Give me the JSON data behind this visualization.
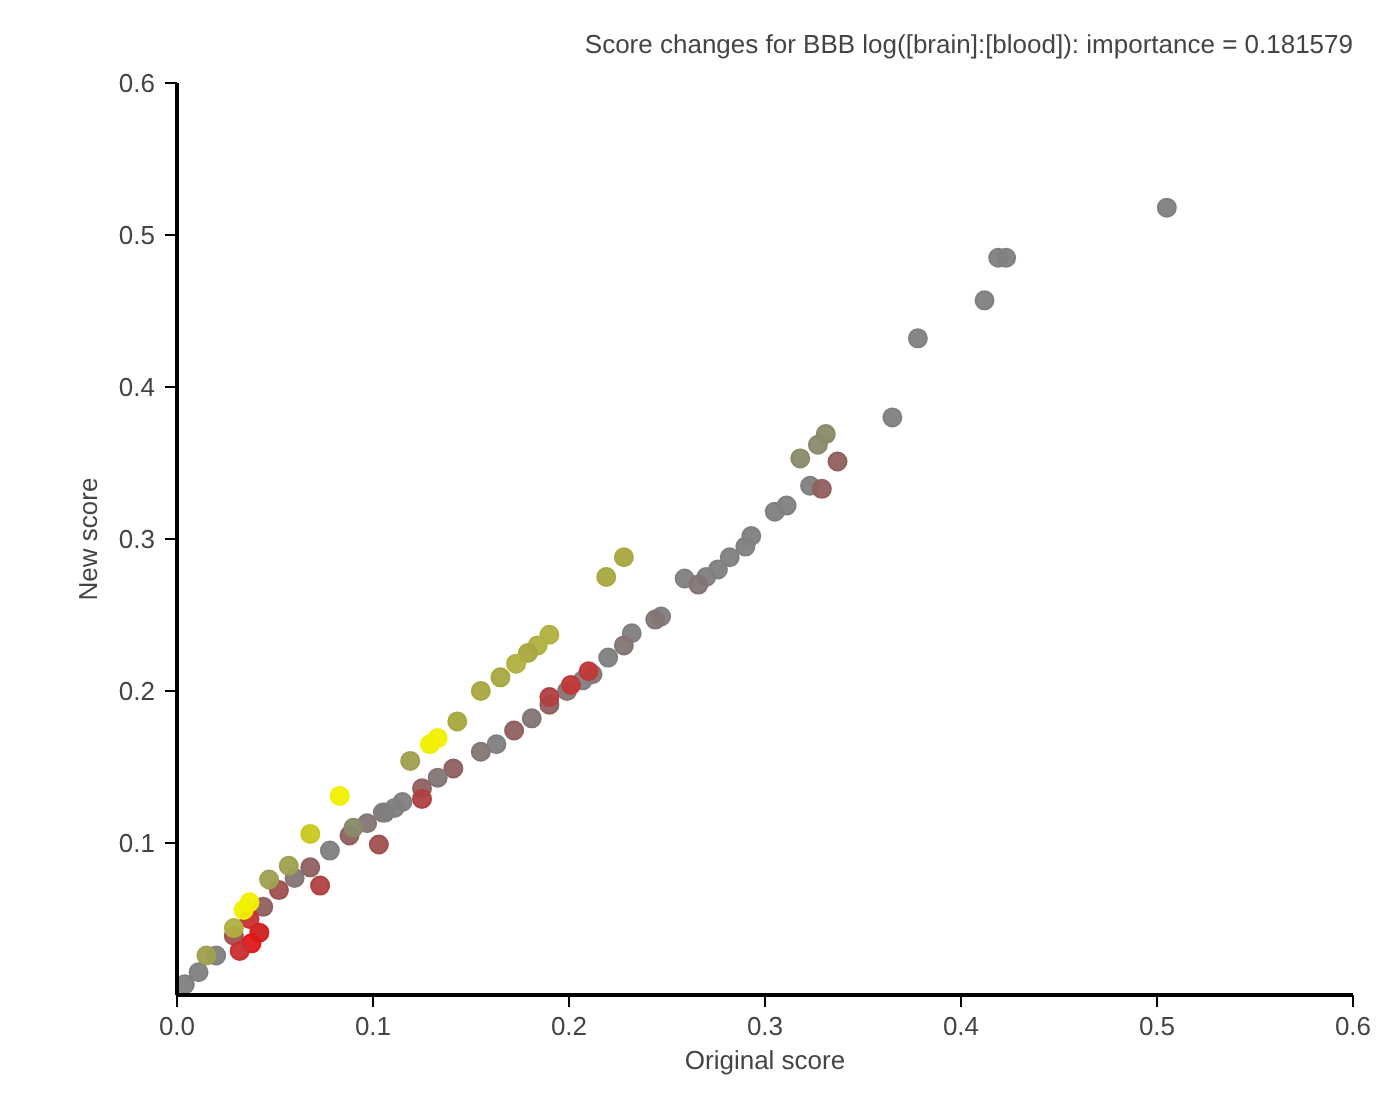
{
  "chart_data": {
    "type": "scatter",
    "title": "Score changes for BBB log([brain]:[blood]): importance = 0.181579",
    "xlabel": "Original score",
    "ylabel": "New score",
    "xlim": [
      0,
      0.6
    ],
    "ylim": [
      0,
      0.6
    ],
    "xticks": [
      {
        "value": 0,
        "label": "0.0"
      },
      0.1,
      0.2,
      0.3,
      0.4,
      0.5,
      0.6
    ],
    "yticks": [
      0.1,
      0.2,
      0.3,
      0.4,
      0.5,
      0.6
    ],
    "grid": false,
    "marker": "circle",
    "x": [
      0.505,
      0.423,
      0.419,
      0.412,
      0.378,
      0.365,
      0.331,
      0.327,
      0.318,
      0.337,
      0.323,
      0.329,
      0.311,
      0.305,
      0.293,
      0.29,
      0.282,
      0.276,
      0.27,
      0.259,
      0.266,
      0.247,
      0.244,
      0.232,
      0.228,
      0.22,
      0.212,
      0.207,
      0.199,
      0.19,
      0.181,
      0.172,
      0.163,
      0.155,
      0.141,
      0.133,
      0.125,
      0.115,
      0.106,
      0.097,
      0.088,
      0.078,
      0.068,
      0.06,
      0.052,
      0.044,
      0.037,
      0.029,
      0.02,
      0.011,
      0.004,
      0.21,
      0.201,
      0.19,
      0.125,
      0.103,
      0.073,
      0.042,
      0.038,
      0.032,
      0.228,
      0.219,
      0.19,
      0.184,
      0.179,
      0.173,
      0.165,
      0.155,
      0.133,
      0.129,
      0.119,
      0.143,
      0.083,
      0.068,
      0.057,
      0.047,
      0.037,
      0.034,
      0.029,
      0.015,
      0.111,
      0.09,
      0.105
    ],
    "values": [
      0.518,
      0.485,
      0.485,
      0.457,
      0.432,
      0.38,
      0.369,
      0.362,
      0.353,
      0.351,
      0.335,
      0.333,
      0.322,
      0.318,
      0.302,
      0.295,
      0.288,
      0.28,
      0.275,
      0.274,
      0.27,
      0.249,
      0.247,
      0.238,
      0.23,
      0.222,
      0.211,
      0.207,
      0.2,
      0.191,
      0.182,
      0.174,
      0.165,
      0.16,
      0.149,
      0.143,
      0.136,
      0.127,
      0.12,
      0.113,
      0.105,
      0.095,
      0.084,
      0.077,
      0.069,
      0.058,
      0.05,
      0.039,
      0.026,
      0.015,
      0.007,
      0.213,
      0.204,
      0.196,
      0.129,
      0.099,
      0.072,
      0.041,
      0.034,
      0.029,
      0.288,
      0.275,
      0.237,
      0.23,
      0.225,
      0.218,
      0.209,
      0.2,
      0.169,
      0.165,
      0.154,
      0.18,
      0.131,
      0.106,
      0.085,
      0.076,
      0.061,
      0.056,
      0.044,
      0.026,
      0.123,
      0.11,
      0.12
    ],
    "colors": [
      "#808080",
      "#808080",
      "#808080",
      "#808080",
      "#808080",
      "#808080",
      "#8a8a6a",
      "#8a8a6a",
      "#8a8a6a",
      "#906060",
      "#808080",
      "#906060",
      "#808080",
      "#808080",
      "#808080",
      "#808080",
      "#808080",
      "#808080",
      "#808080",
      "#808080",
      "#857575",
      "#808080",
      "#857575",
      "#808080",
      "#857575",
      "#808080",
      "#857575",
      "#808080",
      "#857575",
      "#906060",
      "#857575",
      "#906060",
      "#808080",
      "#857575",
      "#906060",
      "#857575",
      "#906060",
      "#808080",
      "#906060",
      "#857575",
      "#906060",
      "#808080",
      "#906060",
      "#857575",
      "#a05050",
      "#906060",
      "#c83030",
      "#a05050",
      "#808080",
      "#808080",
      "#808080",
      "#c03838",
      "#c03838",
      "#b04040",
      "#b04040",
      "#a05050",
      "#b04040",
      "#d02020",
      "#e01818",
      "#c83030",
      "#a8a840",
      "#a8a840",
      "#b0b040",
      "#b0b040",
      "#a8a840",
      "#b0b040",
      "#a8a840",
      "#a8a840",
      "#f0f000",
      "#f0f000",
      "#a0a050",
      "#a8a840",
      "#f0f000",
      "#c8c820",
      "#a0a050",
      "#a0a050",
      "#f0f000",
      "#f0f000",
      "#b0b040",
      "#a0a050",
      "#808080",
      "#8a8a6a",
      "#808080"
    ]
  }
}
